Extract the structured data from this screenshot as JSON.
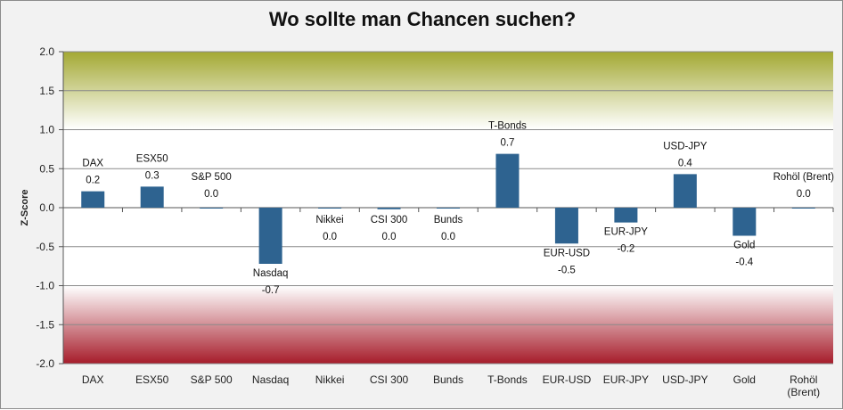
{
  "chart_data": {
    "type": "bar",
    "title": "Wo sollte man Chancen suchen?",
    "xlabel": "",
    "ylabel": "Z-Score",
    "ylim": [
      -2.0,
      2.0
    ],
    "yticks": [
      "2.0",
      "1.5",
      "1.0",
      "0.5",
      "0.0",
      "-0.5",
      "-1.0",
      "-1.5",
      "-2.0"
    ],
    "categories": [
      "DAX",
      "ESX50",
      "S&P 500",
      "Nasdaq",
      "Nikkei",
      "CSI 300",
      "Bunds",
      "T-Bonds",
      "EUR-USD",
      "EUR-JPY",
      "USD-JPY",
      "Gold",
      "Rohöl (Brent)"
    ],
    "values": [
      0.21,
      0.27,
      0.0,
      -0.72,
      0.0,
      -0.02,
      0.0,
      0.69,
      -0.46,
      -0.19,
      0.43,
      -0.36,
      0.0
    ],
    "data_labels": [
      "0.2",
      "0.3",
      "0.0",
      "-0.7",
      "0.0",
      "0.0",
      "0.0",
      "0.7",
      "-0.5",
      "-0.2",
      "0.4",
      "-0.4",
      "0.0"
    ],
    "grid": true,
    "colors": {
      "bar": "#2e6390",
      "top_band": "#a3a833",
      "bottom_band": "#a61c2a",
      "gridline": "#8a8a8a"
    }
  }
}
